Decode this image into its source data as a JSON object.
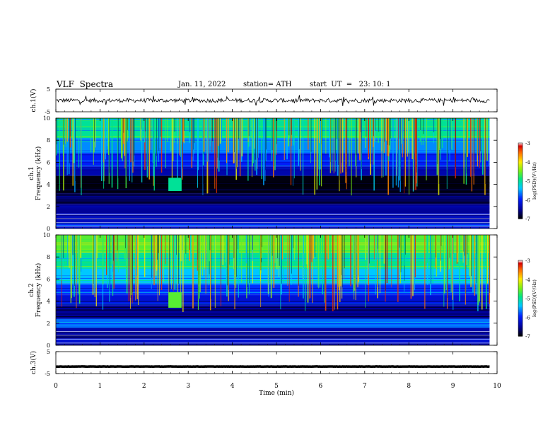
{
  "header": {
    "title": "VLF  Spectra",
    "date": "Jan. 11, 2022",
    "station": "station= ATH",
    "start": "start  UT  =   23: 10: 1"
  },
  "chart_data": [
    {
      "type": "line",
      "ylabel": "ch.1(V)",
      "ylim": [
        -5,
        5
      ],
      "yticks": [
        "5",
        "-5"
      ],
      "x_range": [
        0,
        9.83
      ],
      "mean_value": 0.0,
      "fluctuation_amplitude": 0.9,
      "color": "#000000"
    },
    {
      "type": "heatmap",
      "ylabel": "ch.1\nFrequency (kHz)",
      "ylim": [
        0,
        10
      ],
      "yticks": [
        "0",
        "2",
        "4",
        "6",
        "8",
        "10"
      ],
      "x_range": [
        0,
        9.83
      ],
      "colorbar": {
        "label": "log(PSD)(V²/Hz)",
        "range": [
          -7,
          -3
        ],
        "ticks": [
          "-3",
          "-4",
          "-5",
          "-6",
          "-7"
        ]
      },
      "bands": [
        {
          "from_khz": 0.0,
          "to_khz": 0.4,
          "level": -6.0
        },
        {
          "from_khz": 0.4,
          "to_khz": 1.4,
          "level": -6.3
        },
        {
          "from_khz": 1.4,
          "to_khz": 2.2,
          "level": -6.5
        },
        {
          "from_khz": 2.2,
          "to_khz": 3.2,
          "level": -6.7
        },
        {
          "from_khz": 3.2,
          "to_khz": 4.8,
          "level": -6.95
        },
        {
          "from_khz": 4.8,
          "to_khz": 5.6,
          "level": -6.4
        },
        {
          "from_khz": 5.6,
          "to_khz": 6.8,
          "level": -6.0
        },
        {
          "from_khz": 6.8,
          "to_khz": 8.2,
          "level": -5.6
        },
        {
          "from_khz": 8.2,
          "to_khz": 10.0,
          "level": -5.0
        }
      ],
      "burst": {
        "t_start_min": 2.55,
        "t_end_min": 2.85,
        "f_low_khz": 3.4,
        "f_high_khz": 4.6,
        "level": -5.0
      }
    },
    {
      "type": "heatmap",
      "ylabel": "ch.2\nFrequency (kHz)",
      "ylim": [
        0,
        10
      ],
      "yticks": [
        "0",
        "2",
        "4",
        "6",
        "8",
        "10"
      ],
      "x_range": [
        0,
        9.83
      ],
      "colorbar": {
        "label": "log(PSD)(V²/Hz)",
        "range": [
          -7,
          -3
        ],
        "ticks": [
          "-3",
          "-4",
          "-5",
          "-6",
          "-7"
        ]
      },
      "bands": [
        {
          "from_khz": 0.0,
          "to_khz": 0.6,
          "level": -6.2
        },
        {
          "from_khz": 0.6,
          "to_khz": 1.6,
          "level": -6.4
        },
        {
          "from_khz": 1.6,
          "to_khz": 2.4,
          "level": -5.7
        },
        {
          "from_khz": 2.4,
          "to_khz": 3.6,
          "level": -6.5
        },
        {
          "from_khz": 3.6,
          "to_khz": 4.6,
          "level": -6.2
        },
        {
          "from_khz": 4.6,
          "to_khz": 5.6,
          "level": -5.9
        },
        {
          "from_khz": 5.6,
          "to_khz": 7.0,
          "level": -5.4
        },
        {
          "from_khz": 7.0,
          "to_khz": 8.4,
          "level": -5.0
        },
        {
          "from_khz": 8.4,
          "to_khz": 10.0,
          "level": -4.6
        }
      ],
      "burst": {
        "t_start_min": 2.55,
        "t_end_min": 2.85,
        "f_low_khz": 3.4,
        "f_high_khz": 4.8,
        "level": -4.6
      }
    },
    {
      "type": "line",
      "ylabel": "ch.3(V)",
      "ylim": [
        -5,
        5
      ],
      "yticks": [
        "5",
        "-5"
      ],
      "x_range": [
        0,
        9.83
      ],
      "mean_value": -1.8,
      "fluctuation_amplitude": 0.05,
      "color": "#000000"
    }
  ],
  "xaxis": {
    "label": "Time  (min)",
    "range": [
      0,
      10
    ],
    "ticks": [
      "0",
      "1",
      "2",
      "3",
      "4",
      "5",
      "6",
      "7",
      "8",
      "9",
      "10"
    ]
  }
}
